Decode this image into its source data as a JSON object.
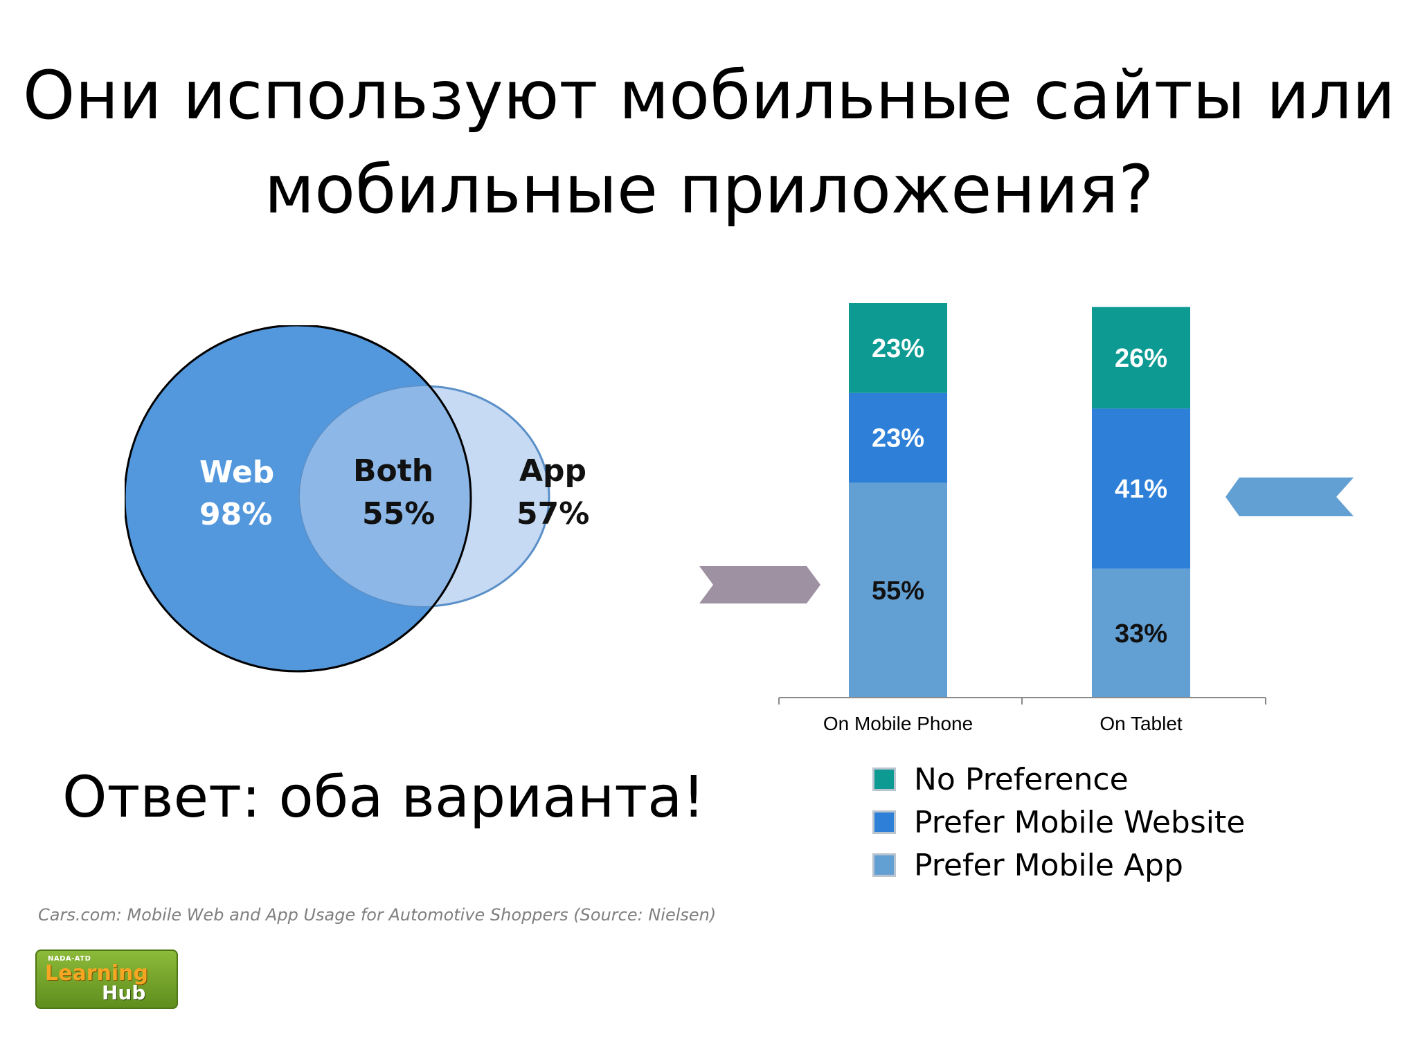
{
  "slide": {
    "title_line1": "Они используют мобильные сайты или",
    "title_line2": "мобильные приложения?",
    "answer": "Ответ: оба варианта!",
    "source": "Cars.com: Mobile Web and App Usage for Automotive Shoppers (Source: Nielsen)",
    "logo": {
      "small": "NADA-ATD",
      "main": "Learning",
      "hub": "Hub"
    }
  },
  "chart_data": [
    {
      "type": "venn",
      "sets": [
        {
          "name": "Web",
          "value_label": "98%",
          "value": 98,
          "color": "#5398dd"
        },
        {
          "name": "App",
          "value_label": "57%",
          "value": 57,
          "color": "#c6daf3"
        }
      ],
      "intersection": {
        "name": "Both",
        "value_label": "55%",
        "value": 55,
        "color": "#8cb7e6"
      }
    },
    {
      "type": "bar",
      "stacked": true,
      "categories": [
        "On Mobile Phone",
        "On Tablet"
      ],
      "series": [
        {
          "name": "Prefer Mobile App",
          "values": [
            55,
            33
          ],
          "labels": [
            "55%",
            "33%"
          ],
          "color": "#629fd3",
          "label_color": "#111111"
        },
        {
          "name": "Prefer Mobile Website",
          "values": [
            23,
            41
          ],
          "labels": [
            "23%",
            "41%"
          ],
          "color": "#2d7fd8",
          "label_color": "#ffffff"
        },
        {
          "name": "No Preference",
          "values": [
            23,
            26
          ],
          "labels": [
            "23%",
            "26%"
          ],
          "color": "#0d9a93",
          "label_color": "#ffffff"
        }
      ],
      "legend": {
        "placement": "bottom",
        "order": [
          "No Preference",
          "Prefer Mobile Website",
          "Prefer Mobile App"
        ]
      },
      "ylim": [
        0,
        101
      ],
      "grid": false,
      "annotations": [
        {
          "kind": "arrow",
          "direction": "right",
          "points_to": "On Mobile Phone",
          "color": "#9e91a2"
        },
        {
          "kind": "arrow",
          "direction": "left",
          "points_to": "On Tablet",
          "color": "#629fd3"
        }
      ]
    }
  ]
}
